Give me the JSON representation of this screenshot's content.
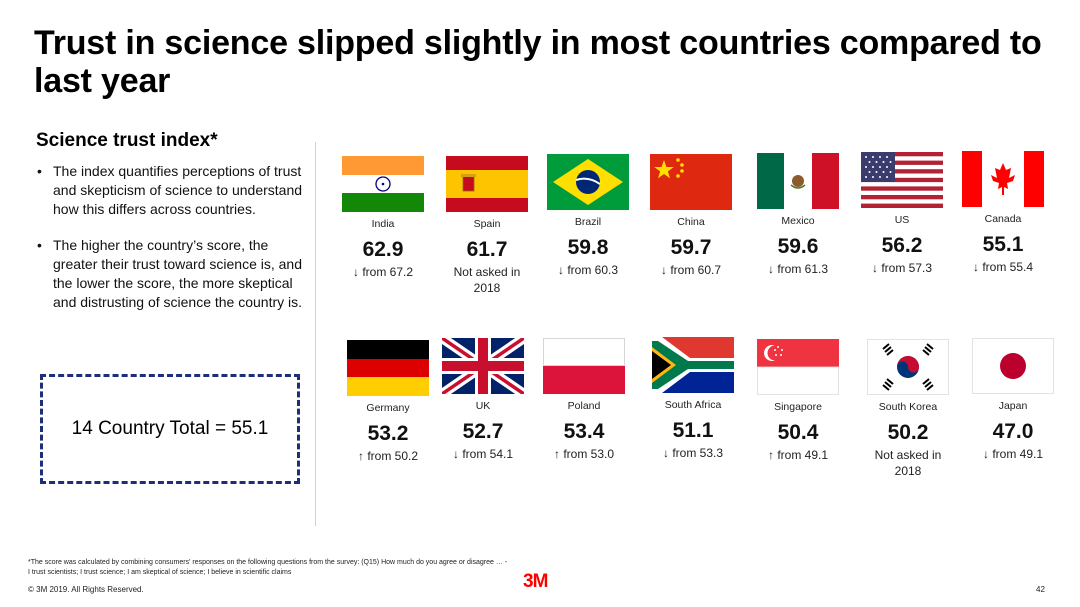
{
  "title": "Trust in science slipped slightly in most countries compared to last year",
  "subtitle": "Science trust index*",
  "bullets": [
    "The index quantifies perceptions of trust and skepticism of science to understand how this differs across countries.",
    "The higher the country’s score, the greater their trust toward science is, and the lower the score, the more skeptical and distrusting of science the country is."
  ],
  "total_label": "14 Country Total = 55.1",
  "countries": [
    {
      "name": "India",
      "score": "62.9",
      "arrow": "↓",
      "change": "from 67.2"
    },
    {
      "name": "Spain",
      "score": "61.7",
      "arrow": "",
      "change": "Not asked in 2018"
    },
    {
      "name": "Brazil",
      "score": "59.8",
      "arrow": "↓",
      "change": "from 60.3"
    },
    {
      "name": "China",
      "score": "59.7",
      "arrow": "↓",
      "change": "from 60.7"
    },
    {
      "name": "Mexico",
      "score": "59.6",
      "arrow": "↓",
      "change": "from 61.3"
    },
    {
      "name": "US",
      "score": "56.2",
      "arrow": "↓",
      "change": "from 57.3"
    },
    {
      "name": "Canada",
      "score": "55.1",
      "arrow": "↓",
      "change": "from 55.4"
    },
    {
      "name": "Germany",
      "score": "53.2",
      "arrow": "↑",
      "change": "from 50.2"
    },
    {
      "name": "UK",
      "score": "52.7",
      "arrow": "↓",
      "change": "from 54.1"
    },
    {
      "name": "Poland",
      "score": "53.4",
      "arrow": "↑",
      "change": "from 53.0"
    },
    {
      "name": "South Africa",
      "score": "51.1",
      "arrow": "↓",
      "change": "from 53.3"
    },
    {
      "name": "Singapore",
      "score": "50.4",
      "arrow": "↑",
      "change": "from 49.1"
    },
    {
      "name": "South Korea",
      "score": "50.2",
      "arrow": "",
      "change": "Not asked in 2018"
    },
    {
      "name": "Japan",
      "score": "47.0",
      "arrow": "↓",
      "change": "from 49.1"
    }
  ],
  "footnote": "*The score was calculated by combining consumers' responses on the following questions from the survey: (Q15) How much do you agree or disagree … - I trust scientists; I trust science; I am skeptical of science; I believe in scientific claims",
  "copyright": "© 3M 2019.   All Rights Reserved.",
  "logo": "3M",
  "page_number": "42",
  "colors": {
    "box_border": "#1d2f78",
    "logo_red": "#ff0000"
  }
}
